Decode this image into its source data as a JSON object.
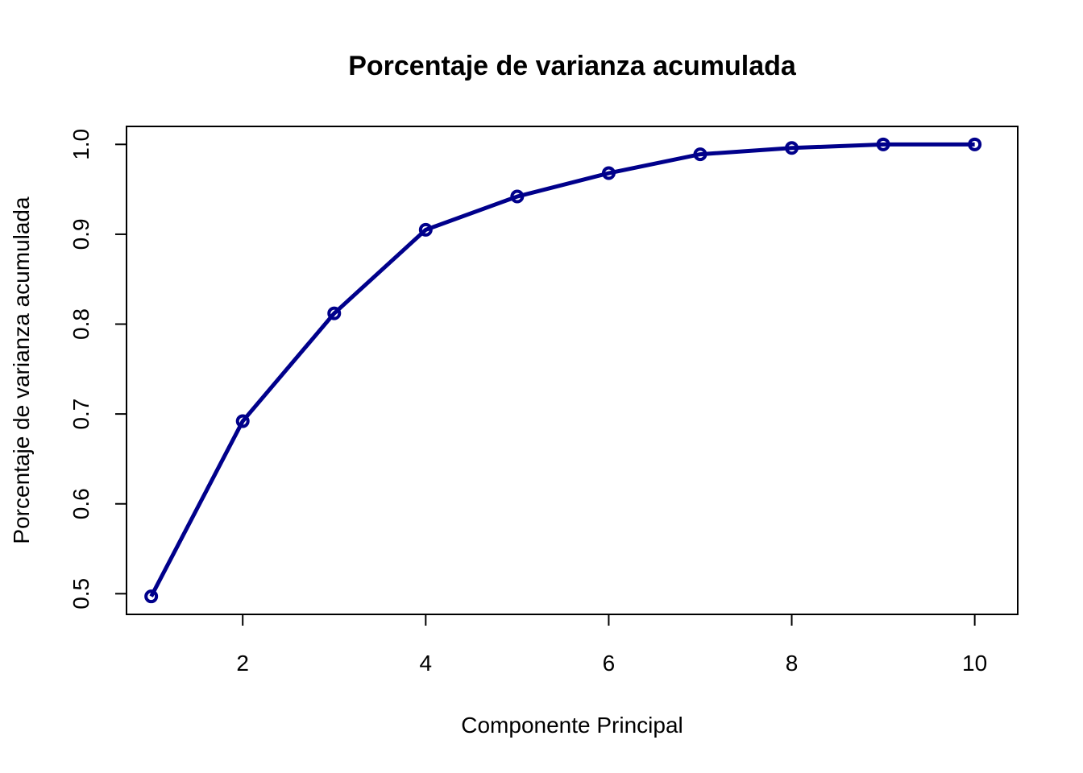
{
  "chart_data": {
    "type": "line",
    "title": "Porcentaje de varianza acumulada",
    "xlabel": "Componente Principal",
    "ylabel": "Porcentaje de varianza acumulada",
    "x": [
      1,
      2,
      3,
      4,
      5,
      6,
      7,
      8,
      9,
      10
    ],
    "series": [
      {
        "values": [
          0.497,
          0.692,
          0.812,
          0.905,
          0.942,
          0.968,
          0.989,
          0.996,
          1.0,
          1.0
        ]
      }
    ],
    "xlim": [
      0.73,
      10.47
    ],
    "ylim": [
      0.477,
      1.02
    ],
    "xticks": [
      2,
      4,
      6,
      8,
      10
    ],
    "xtick_labels": [
      "2",
      "4",
      "6",
      "8",
      "10"
    ],
    "yticks": [
      0.5,
      0.6,
      0.7,
      0.8,
      0.9,
      1.0
    ],
    "ytick_labels": [
      "0.5",
      "0.6",
      "0.7",
      "0.8",
      "0.9",
      "1.0"
    ],
    "grid": false,
    "legend": "none",
    "colors": {
      "line": "#00008b",
      "axis": "#000000"
    }
  }
}
